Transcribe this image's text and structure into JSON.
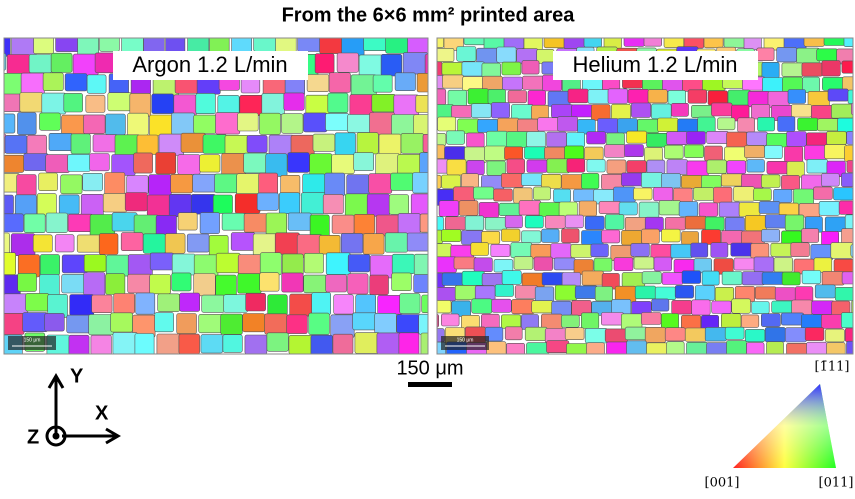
{
  "title": "From the 6×6 mm² printed area",
  "panels": [
    {
      "label": "Argon 1.2 L/min",
      "scale_label": "150 μm"
    },
    {
      "label": "Helium 1.2 L/min",
      "scale_label": "150 μm"
    }
  ],
  "scale_bar": "150 μm",
  "axes": {
    "y": "Y",
    "x": "X",
    "z": "Z"
  },
  "ipf": {
    "top": "[1̄11]",
    "left": "[001]",
    "right": "[011]"
  }
}
